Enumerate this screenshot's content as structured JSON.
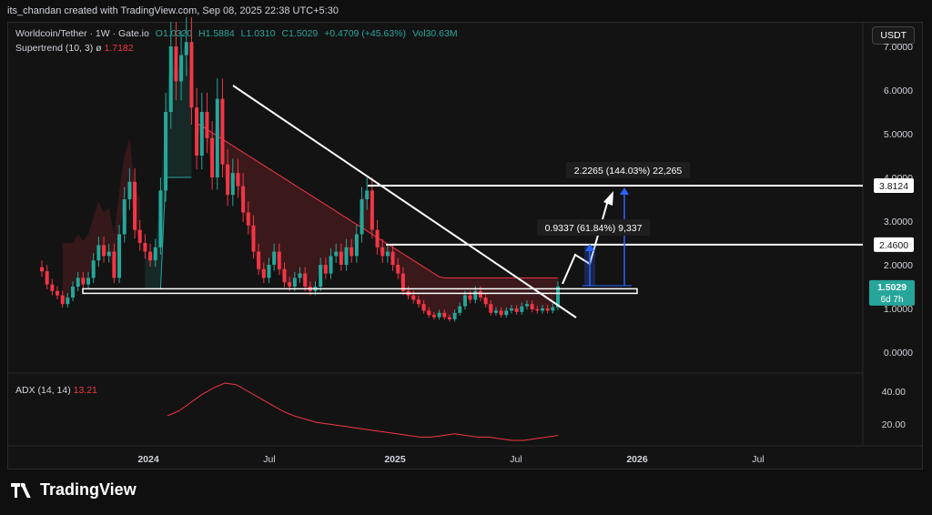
{
  "header": {
    "attribution": "its_chandan created with TradingView.com, Sep 08, 2025 22:38 UTC+5:30"
  },
  "legend": {
    "pair": "Worldcoin/Tether · 1W · Gate.io",
    "open": "O1.0320",
    "high": "H1.5884",
    "low": "L1.0310",
    "close": "C1.5029",
    "change": "+0.4709 (+45.63%)",
    "volume": "Vol30.63M",
    "supertrend_label": "Supertrend (10, 3)",
    "supertrend_symbol": "ø",
    "supertrend_value": "1.7182"
  },
  "currency_button": "USDT",
  "adx": {
    "label": "ADX (14, 14)",
    "value": "13.21"
  },
  "footer": {
    "brand": "TradingView"
  },
  "colors": {
    "up": "#26a69a",
    "down": "#f23645",
    "white": "#ffffff",
    "blue": "#2962ff",
    "bg": "#131313"
  },
  "chart_data": {
    "type": "candlestick",
    "title": "Worldcoin/Tether · 1W · Gate.io",
    "y_ticks": [
      "7.0000",
      "6.0000",
      "5.0000",
      "4.0000",
      "3.0000",
      "2.0000",
      "1.0000",
      "0.0000"
    ],
    "y_tick_values": [
      7,
      6,
      5,
      4,
      3,
      2,
      1,
      0
    ],
    "ylim": [
      -0.7,
      7.2
    ],
    "x_ticks": [
      "2024",
      "Jul",
      "2025",
      "Jul",
      "2026",
      "Jul"
    ],
    "price_labels": [
      {
        "text": "3.8124",
        "value": 3.8124
      },
      {
        "text": "2.4600",
        "value": 2.46
      },
      {
        "text": "1.5029",
        "value": 1.5029,
        "sub": "6d 7h"
      }
    ],
    "annotations": [
      {
        "text": "2.2265 (144.03%) 22,265"
      },
      {
        "text": "0.9337 (61.84%) 9,337"
      }
    ],
    "adx_ticks": [
      "40.00",
      "20.00"
    ],
    "adx_tick_values": [
      40,
      20
    ],
    "closes": [
      1.85,
      1.55,
      1.4,
      1.3,
      1.1,
      1.25,
      1.5,
      1.7,
      1.55,
      1.7,
      2.1,
      2.45,
      2.2,
      2.3,
      1.7,
      2.7,
      3.5,
      3.9,
      2.8,
      2.5,
      2.3,
      2.1,
      2.4,
      3.7,
      5.5,
      7.0,
      6.2,
      6.8,
      7.1,
      5.6,
      4.5,
      5.5,
      4.9,
      4.0,
      5.8,
      4.3,
      3.6,
      4.1,
      3.8,
      3.2,
      2.9,
      2.3,
      1.9,
      1.7,
      2.0,
      2.3,
      1.9,
      1.6,
      1.5,
      1.7,
      1.8,
      1.5,
      1.4,
      1.5,
      2.0,
      1.8,
      2.2,
      2.3,
      2.0,
      2.4,
      2.2,
      2.7,
      3.5,
      3.7,
      2.8,
      2.4,
      2.2,
      2.3,
      2.0,
      1.8,
      1.4,
      1.3,
      1.2,
      1.1,
      0.95,
      0.85,
      0.8,
      0.9,
      0.8,
      0.75,
      0.9,
      1.05,
      1.3,
      1.2,
      1.4,
      1.25,
      1.1,
      0.9,
      0.95,
      0.85,
      0.95,
      1.0,
      0.92,
      1.05,
      1.1,
      0.98,
      0.95,
      1.0,
      0.95,
      1.03,
      1.5029
    ],
    "adx_values": [
      25,
      28,
      33,
      38,
      42,
      45,
      44,
      40,
      36,
      32,
      28,
      25,
      23,
      21,
      20,
      19,
      18,
      17,
      16,
      15,
      14,
      13,
      12,
      12,
      13,
      14,
      13,
      12,
      12,
      11,
      10,
      10,
      11,
      12,
      13
    ]
  }
}
